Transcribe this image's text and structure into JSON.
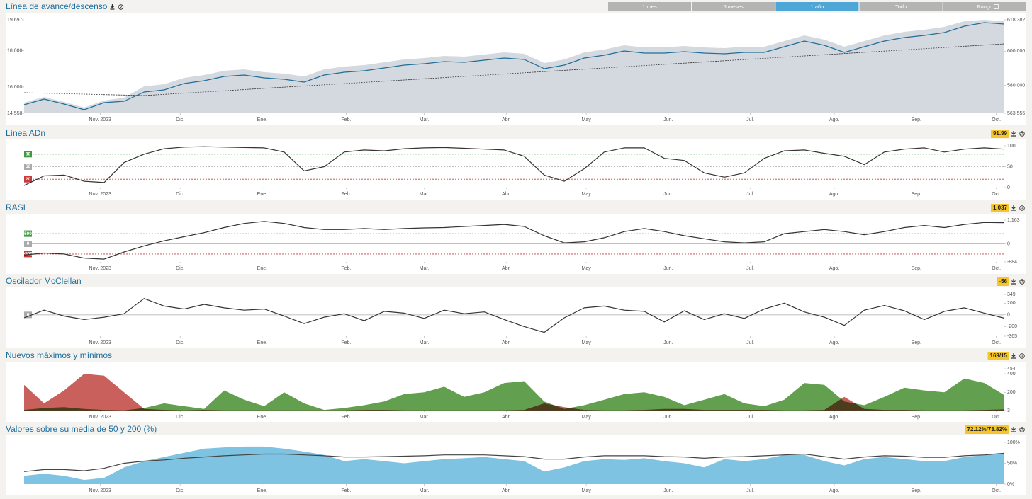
{
  "range_buttons": [
    "1 mes",
    "6 meses",
    "1 año",
    "Todo",
    "Rango"
  ],
  "active_range": 2,
  "chart_data": [
    {
      "type": "line",
      "title": "Línea de avance/descenso",
      "xlim": [
        0,
        49
      ],
      "xticks": [
        {
          "value": 3.8,
          "label": "Nov. 2023"
        },
        {
          "value": 7.8,
          "label": "Dic."
        },
        {
          "value": 11.9,
          "label": "Ene."
        },
        {
          "value": 16.1,
          "label": "Feb."
        },
        {
          "value": 20,
          "label": "Mar."
        },
        {
          "value": 24.1,
          "label": "Abr."
        },
        {
          "value": 28.1,
          "label": "May"
        },
        {
          "value": 32.2,
          "label": "Jun."
        },
        {
          "value": 36.3,
          "label": "Jul."
        },
        {
          "value": 40.5,
          "label": "Ago."
        },
        {
          "value": 44.6,
          "label": "Sep."
        },
        {
          "value": 48.6,
          "label": "Oct."
        }
      ],
      "ylim": [
        14558,
        19697
      ],
      "yticks": [
        {
          "value": 19697,
          "label": "19.697"
        },
        {
          "value": 18000,
          "label": "18.000"
        },
        {
          "value": 16000,
          "label": "16.000"
        },
        {
          "value": 14558,
          "label": "14.558"
        }
      ],
      "y2lim": [
        563555,
        618382
      ],
      "y2ticks": [
        {
          "value": 618382,
          "label": "618.382"
        },
        {
          "value": 600000,
          "label": "600.000"
        },
        {
          "value": 580000,
          "label": "580.000"
        },
        {
          "value": 563555,
          "label": "563.555"
        }
      ],
      "series": [
        {
          "kind": "area",
          "axis": "y2",
          "color": "#d4d8df",
          "values": [
            569780,
            573103,
            570196,
            566872,
            571026,
            572688,
            579334,
            580581,
            584319,
            585981,
            588473,
            589304,
            587642,
            586812,
            585150,
            589304,
            590966,
            591796,
            593458,
            595120,
            595950,
            597197,
            596781,
            598027,
            599274,
            598443,
            593043,
            595120,
            599274,
            600935,
            603428,
            602181,
            602181,
            603012,
            602181,
            601766,
            602597,
            602597,
            605920,
            609243,
            606751,
            602597,
            605920,
            609243,
            611320,
            612566,
            614228,
            617551,
            618382,
            617551
          ]
        },
        {
          "kind": "line",
          "dash": true,
          "color": "#333333",
          "values": [
            15687,
            15661,
            15635,
            15609,
            15583,
            15557,
            15530,
            15596,
            15662,
            15728,
            15794,
            15861,
            15927,
            15993,
            16059,
            16125,
            16191,
            16257,
            16323,
            16389,
            16455,
            16522,
            16588,
            16654,
            16720,
            16786,
            16852,
            16918,
            16984,
            17050,
            17116,
            17183,
            17249,
            17315,
            17381,
            17447,
            17513,
            17579,
            17645,
            17711,
            17778,
            17844,
            17910,
            17976,
            18042,
            18108,
            18174,
            18240,
            18306,
            18373
          ]
        },
        {
          "kind": "line",
          "color": "#1f6f99",
          "values": [
            15025,
            15337,
            15064,
            14753,
            15142,
            15220,
            15726,
            15843,
            16193,
            16349,
            16583,
            16660,
            16505,
            16427,
            16271,
            16660,
            16816,
            16894,
            17050,
            17205,
            17283,
            17400,
            17361,
            17478,
            17595,
            17517,
            17011,
            17205,
            17595,
            17750,
            17984,
            17867,
            17867,
            17945,
            17867,
            17828,
            17906,
            17906,
            18218,
            18529,
            18296,
            17906,
            18218,
            18529,
            18724,
            18841,
            18996,
            19347,
            19541,
            19463
          ]
        }
      ]
    },
    {
      "type": "line",
      "title": "Línea ADn",
      "badge": "91.99",
      "xlim": [
        0,
        49
      ],
      "xticks": [
        {
          "value": 3.8,
          "label": "Nov. 2023"
        },
        {
          "value": 7.8,
          "label": "Dic."
        },
        {
          "value": 11.9,
          "label": "Ene."
        },
        {
          "value": 16.1,
          "label": "Feb."
        },
        {
          "value": 20,
          "label": "Mar."
        },
        {
          "value": 24.1,
          "label": "Abr."
        },
        {
          "value": 28.1,
          "label": "May"
        },
        {
          "value": 32.2,
          "label": "Jun."
        },
        {
          "value": 36.3,
          "label": "Jul."
        },
        {
          "value": 40.5,
          "label": "Ago."
        },
        {
          "value": 44.6,
          "label": "Sep."
        },
        {
          "value": 48.6,
          "label": "Oct."
        }
      ],
      "ylim": [
        0,
        100
      ],
      "yticks": [
        100,
        50,
        0
      ],
      "levels": [
        80,
        50,
        20
      ],
      "level_colors": [
        "#3f9a3f",
        "#aaaaaa",
        "#c43c3c"
      ],
      "series": [
        {
          "kind": "line",
          "color": "#333333",
          "values": [
            5,
            28,
            30,
            15,
            12,
            60,
            80,
            93,
            97,
            98,
            97,
            96,
            95,
            85,
            40,
            50,
            85,
            90,
            88,
            93,
            95,
            96,
            94,
            92,
            90,
            75,
            30,
            15,
            45,
            85,
            95,
            95,
            70,
            65,
            35,
            25,
            35,
            70,
            88,
            90,
            82,
            75,
            55,
            85,
            92,
            95,
            85,
            92,
            95,
            92
          ]
        }
      ]
    },
    {
      "type": "line",
      "title": "RASI",
      "badge": "1.037",
      "xlim": [
        0,
        49
      ],
      "xticks": [
        {
          "value": 3.8,
          "label": "Nov. 2023"
        },
        {
          "value": 7.8,
          "label": "Dic."
        },
        {
          "value": 11.9,
          "label": "Ene."
        },
        {
          "value": 16.1,
          "label": "Feb."
        },
        {
          "value": 20,
          "label": "Mar."
        },
        {
          "value": 24.1,
          "label": "Abr."
        },
        {
          "value": 28.1,
          "label": "May"
        },
        {
          "value": 32.2,
          "label": "Jun."
        },
        {
          "value": 36.3,
          "label": "Jul."
        },
        {
          "value": 40.5,
          "label": "Ago."
        },
        {
          "value": 44.6,
          "label": "Sep."
        },
        {
          "value": 48.6,
          "label": "Oct."
        }
      ],
      "ylim": [
        -884,
        1163
      ],
      "yticks": [
        {
          "value": 1163,
          "label": "1.163"
        },
        0,
        -884
      ],
      "levels": [
        500,
        0,
        -500
      ],
      "level_colors": [
        "#3f9a3f",
        "#aaaaaa",
        "#c43c3c"
      ],
      "series": [
        {
          "kind": "line",
          "color": "#333333",
          "values": [
            -550,
            -450,
            -500,
            -700,
            -750,
            -400,
            -100,
            150,
            350,
            550,
            800,
            1000,
            1100,
            1000,
            800,
            700,
            700,
            750,
            700,
            750,
            780,
            800,
            850,
            900,
            950,
            850,
            400,
            50,
            100,
            300,
            600,
            750,
            600,
            400,
            250,
            100,
            50,
            100,
            500,
            600,
            700,
            600,
            450,
            600,
            800,
            900,
            800,
            950,
            1050,
            1037
          ]
        }
      ]
    },
    {
      "type": "line",
      "title": "Oscilador McClellan",
      "badge": "-56",
      "xlim": [
        0,
        49
      ],
      "xticks": [
        {
          "value": 3.8,
          "label": "Nov. 2023"
        },
        {
          "value": 7.8,
          "label": "Dic."
        },
        {
          "value": 11.9,
          "label": "Ene."
        },
        {
          "value": 16.1,
          "label": "Feb."
        },
        {
          "value": 20,
          "label": "Mar."
        },
        {
          "value": 24.1,
          "label": "Abr."
        },
        {
          "value": 28.1,
          "label": "May"
        },
        {
          "value": 32.2,
          "label": "Jun."
        },
        {
          "value": 36.3,
          "label": "Jul."
        },
        {
          "value": 40.5,
          "label": "Ago."
        },
        {
          "value": 44.6,
          "label": "Sep."
        },
        {
          "value": 48.6,
          "label": "Oct."
        }
      ],
      "ylim": [
        -365,
        349
      ],
      "yticks": [
        349,
        200,
        0,
        -200,
        -365
      ],
      "levels": [
        0
      ],
      "level_colors": [
        "#aaaaaa"
      ],
      "series": [
        {
          "kind": "line",
          "color": "#333333",
          "values": [
            -50,
            80,
            -20,
            -80,
            -40,
            20,
            280,
            150,
            100,
            180,
            120,
            80,
            100,
            -20,
            -150,
            -40,
            20,
            -100,
            60,
            30,
            -60,
            80,
            20,
            50,
            -80,
            -200,
            -300,
            -50,
            120,
            150,
            80,
            60,
            -120,
            70,
            -80,
            20,
            -60,
            100,
            200,
            50,
            -40,
            -180,
            80,
            160,
            70,
            -80,
            60,
            120,
            30,
            -56
          ]
        }
      ]
    },
    {
      "type": "area",
      "title": "Nuevos máximos y mínimos",
      "badge": "169/15",
      "xlim": [
        0,
        49
      ],
      "xticks": [
        {
          "value": 3.8,
          "label": "Nov. 2023"
        },
        {
          "value": 7.8,
          "label": "Dic."
        },
        {
          "value": 11.9,
          "label": "Ene."
        },
        {
          "value": 16.1,
          "label": "Feb."
        },
        {
          "value": 20,
          "label": "Mar."
        },
        {
          "value": 24.1,
          "label": "Abr."
        },
        {
          "value": 28.1,
          "label": "May"
        },
        {
          "value": 32.2,
          "label": "Jun."
        },
        {
          "value": 36.3,
          "label": "Jul."
        },
        {
          "value": 40.5,
          "label": "Ago."
        },
        {
          "value": 44.6,
          "label": "Sep."
        },
        {
          "value": 48.6,
          "label": "Oct."
        }
      ],
      "ylim": [
        3,
        454
      ],
      "yticks": [
        454,
        400,
        200,
        3
      ],
      "series": [
        {
          "kind": "area",
          "color": "#62a04f",
          "values": [
            10,
            30,
            40,
            20,
            10,
            5,
            30,
            80,
            50,
            20,
            220,
            120,
            50,
            200,
            80,
            10,
            30,
            60,
            100,
            180,
            200,
            260,
            150,
            200,
            300,
            320,
            100,
            20,
            60,
            120,
            180,
            200,
            150,
            60,
            120,
            180,
            80,
            50,
            120,
            300,
            280,
            100,
            60,
            150,
            250,
            220,
            200,
            350,
            300,
            169
          ]
        },
        {
          "kind": "area",
          "color": "#c9605c",
          "values": [
            280,
            80,
            220,
            400,
            380,
            200,
            20,
            10,
            5,
            10,
            5,
            5,
            5,
            5,
            5,
            5,
            5,
            10,
            10,
            5,
            5,
            5,
            5,
            5,
            5,
            10,
            80,
            40,
            10,
            5,
            5,
            10,
            20,
            20,
            10,
            10,
            10,
            10,
            5,
            5,
            10,
            150,
            20,
            10,
            10,
            5,
            5,
            5,
            10,
            15
          ]
        }
      ]
    },
    {
      "type": "area",
      "title": "Valores sobre su media de 50 y 200 (%)",
      "badge": "72.12%/73.82%",
      "xlim": [
        0,
        49
      ],
      "xticks": [
        {
          "value": 3.8,
          "label": "Nov. 2023"
        },
        {
          "value": 7.8,
          "label": "Dic."
        },
        {
          "value": 11.9,
          "label": "Ene."
        },
        {
          "value": 16.1,
          "label": "Feb."
        },
        {
          "value": 20,
          "label": "Mar."
        },
        {
          "value": 24.1,
          "label": "Abr."
        },
        {
          "value": 28.1,
          "label": "May"
        },
        {
          "value": 32.2,
          "label": "Jun."
        },
        {
          "value": 36.3,
          "label": "Jul."
        },
        {
          "value": 40.5,
          "label": "Ago."
        },
        {
          "value": 44.6,
          "label": "Sep."
        },
        {
          "value": 48.6,
          "label": "Oct."
        }
      ],
      "ylim": [
        0,
        100
      ],
      "yticks": [
        {
          "value": 100,
          "label": "100%"
        },
        {
          "value": 50,
          "label": "50%"
        },
        {
          "value": 0,
          "label": "0%"
        }
      ],
      "series": [
        {
          "kind": "area",
          "color": "#7ec3e1",
          "values": [
            20,
            25,
            20,
            10,
            15,
            40,
            55,
            65,
            75,
            85,
            88,
            90,
            90,
            85,
            78,
            70,
            55,
            60,
            55,
            50,
            55,
            60,
            62,
            65,
            60,
            55,
            30,
            40,
            55,
            60,
            58,
            62,
            55,
            50,
            40,
            60,
            55,
            60,
            70,
            70,
            55,
            45,
            60,
            65,
            60,
            55,
            55,
            65,
            70,
            72
          ]
        },
        {
          "kind": "line",
          "color": "#444444",
          "values": [
            30,
            35,
            35,
            32,
            38,
            50,
            55,
            58,
            62,
            65,
            68,
            70,
            72,
            72,
            70,
            68,
            65,
            65,
            66,
            67,
            68,
            70,
            70,
            70,
            68,
            66,
            60,
            60,
            65,
            68,
            68,
            68,
            66,
            65,
            62,
            65,
            66,
            68,
            70,
            72,
            66,
            60,
            65,
            68,
            67,
            64,
            64,
            68,
            70,
            74
          ]
        }
      ]
    }
  ]
}
